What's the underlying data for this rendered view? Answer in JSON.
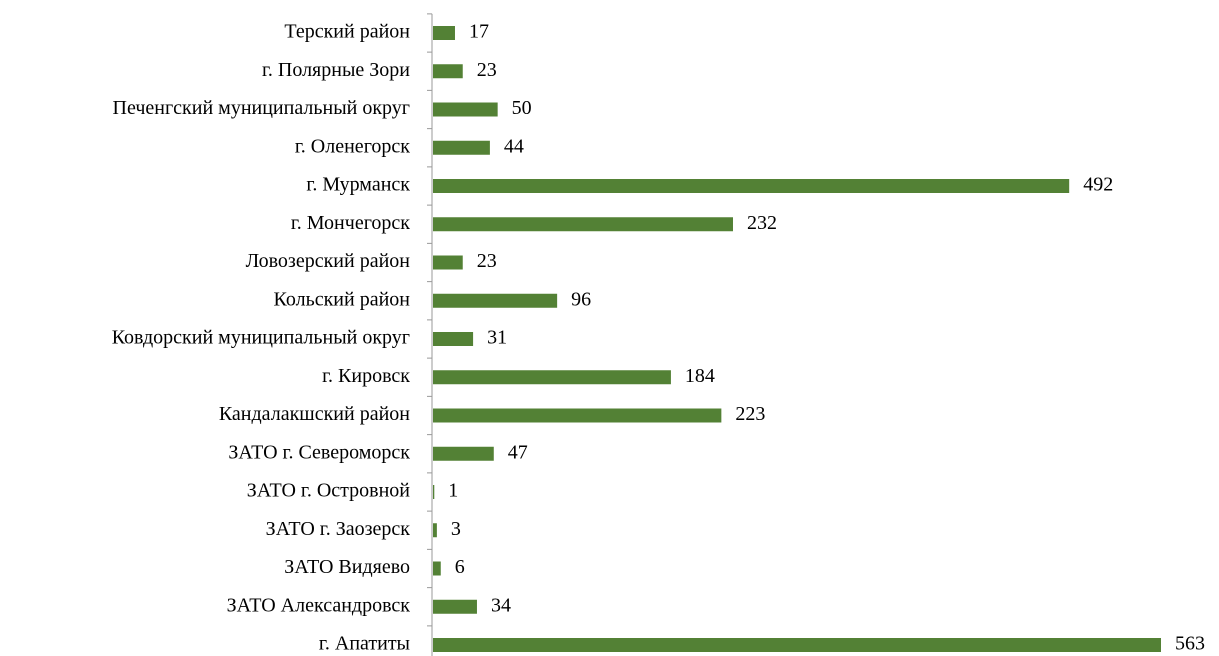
{
  "chart_data": {
    "type": "bar",
    "orientation": "horizontal",
    "color": "#538135",
    "categories": [
      "Терский район",
      "г. Полярные Зори",
      "Печенгский муниципальный округ",
      "г. Оленегорск",
      "г. Мурманск",
      "г. Мончегорск",
      "Ловозерский район",
      "Кольский район",
      "Ковдорский муниципальный округ",
      "г. Кировск",
      "Кандалакшский район",
      "ЗАТО г. Североморск",
      "ЗАТО г. Островной",
      "ЗАТО г. Заозерск",
      "ЗАТО Видяево",
      "ЗАТО Александровск",
      "г. Апатиты"
    ],
    "values": [
      17,
      23,
      50,
      44,
      492,
      232,
      23,
      96,
      31,
      184,
      223,
      47,
      1,
      3,
      6,
      34,
      563
    ]
  }
}
